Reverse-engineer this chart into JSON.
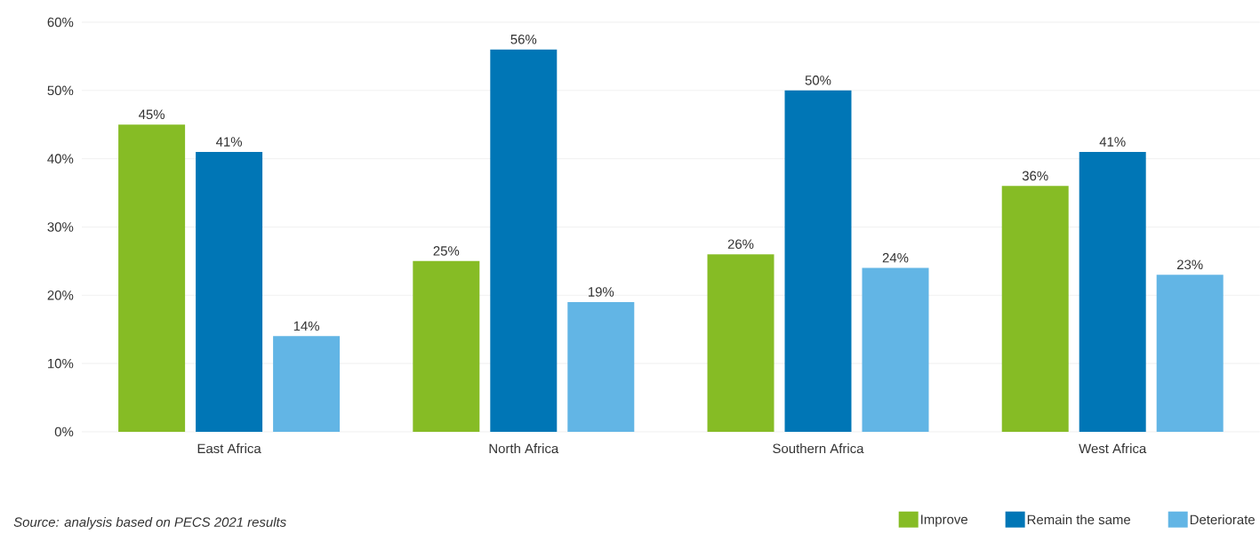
{
  "chart_data": {
    "type": "bar",
    "categories": [
      "East Africa",
      "North Africa",
      "Southern Africa",
      "West Africa"
    ],
    "series": [
      {
        "name": "Improve",
        "color": "#86bc25",
        "values": [
          45,
          25,
          26,
          36
        ],
        "value_labels": [
          "45%",
          "25%",
          "26%",
          "36%"
        ]
      },
      {
        "name": "Remain the same",
        "color": "#0076b6",
        "values": [
          41,
          56,
          50,
          41
        ],
        "value_labels": [
          "41%",
          "56%",
          "50%",
          "41%"
        ]
      },
      {
        "name": "Deteriorate",
        "color": "#62b5e5",
        "values": [
          14,
          19,
          24,
          23
        ],
        "value_labels": [
          "14%",
          "19%",
          "24%",
          "23%"
        ]
      }
    ],
    "ylim": [
      0,
      60
    ],
    "yticks": [
      {
        "value": 0,
        "label": "0%"
      },
      {
        "value": 10,
        "label": "10%"
      },
      {
        "value": 20,
        "label": "20%"
      },
      {
        "value": 30,
        "label": "30%"
      },
      {
        "value": 40,
        "label": "40%"
      },
      {
        "value": 50,
        "label": "50%"
      },
      {
        "value": 60,
        "label": "60%"
      }
    ],
    "grid": "y",
    "legend": "bottom right",
    "annotations": [
      "Source: analysis based on PECS 2021 results"
    ]
  }
}
